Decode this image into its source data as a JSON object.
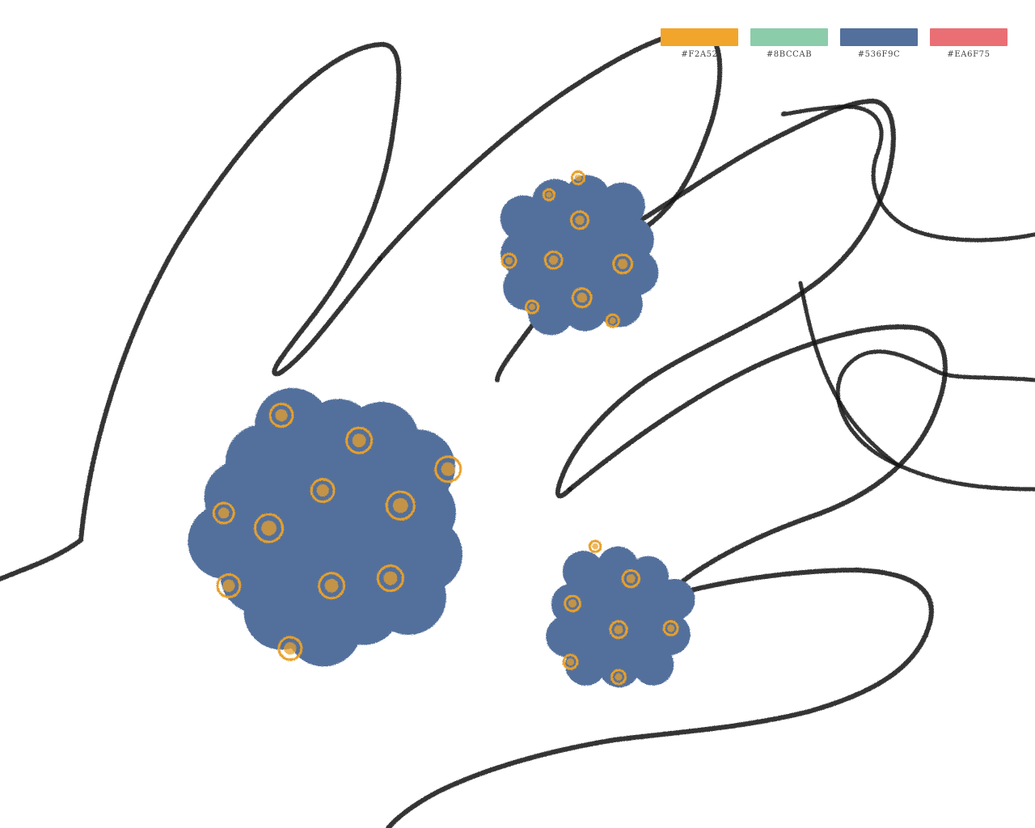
{
  "palette": {
    "swatches": [
      {
        "hex": "#F2A52",
        "color": "#F2A52B"
      },
      {
        "hex": "#8BCCAB",
        "color": "#8BCCAB"
      },
      {
        "hex": "#536F9C",
        "color": "#536F9C"
      },
      {
        "hex": "#EA6F75",
        "color": "#EA6F75"
      }
    ]
  },
  "colors": {
    "ink": "#1a1a1a",
    "virus_body": "#536F9C",
    "virus_spot": "#E8A02A",
    "background": "#FFFFFF"
  },
  "illustration": {
    "subject": "hand-outline",
    "elements": [
      "virus-large",
      "virus-medium",
      "virus-small"
    ]
  }
}
